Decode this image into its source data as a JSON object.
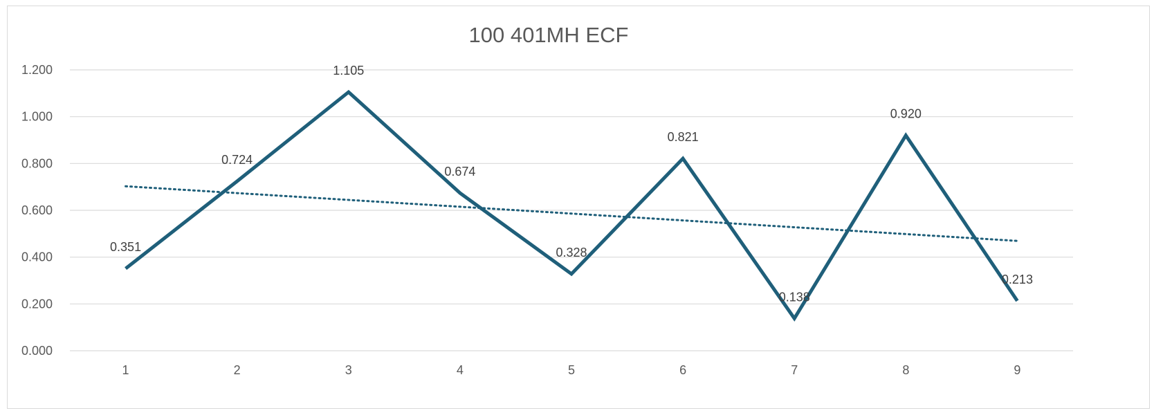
{
  "chart_data": {
    "type": "line",
    "title": "100 401MH ECF",
    "xlabel": "",
    "ylabel": "",
    "categories": [
      "1",
      "2",
      "3",
      "4",
      "5",
      "6",
      "7",
      "8",
      "9"
    ],
    "series": [
      {
        "values": [
          0.351,
          0.724,
          1.105,
          0.674,
          0.328,
          0.821,
          0.138,
          0.92,
          0.213
        ],
        "data_labels": [
          "0.351",
          "0.724",
          "1.105",
          "0.674",
          "0.328",
          "0.821",
          "0.138",
          "0.920",
          "0.213"
        ],
        "color": "#1f5f7a"
      }
    ],
    "trendline": {
      "type": "linear",
      "style": "dotted",
      "color": "#1f5f7a"
    },
    "ylim": [
      0,
      1.2
    ],
    "yticks": [
      "0.000",
      "0.200",
      "0.400",
      "0.600",
      "0.800",
      "1.000",
      "1.200"
    ],
    "grid": true,
    "legend": "none"
  }
}
